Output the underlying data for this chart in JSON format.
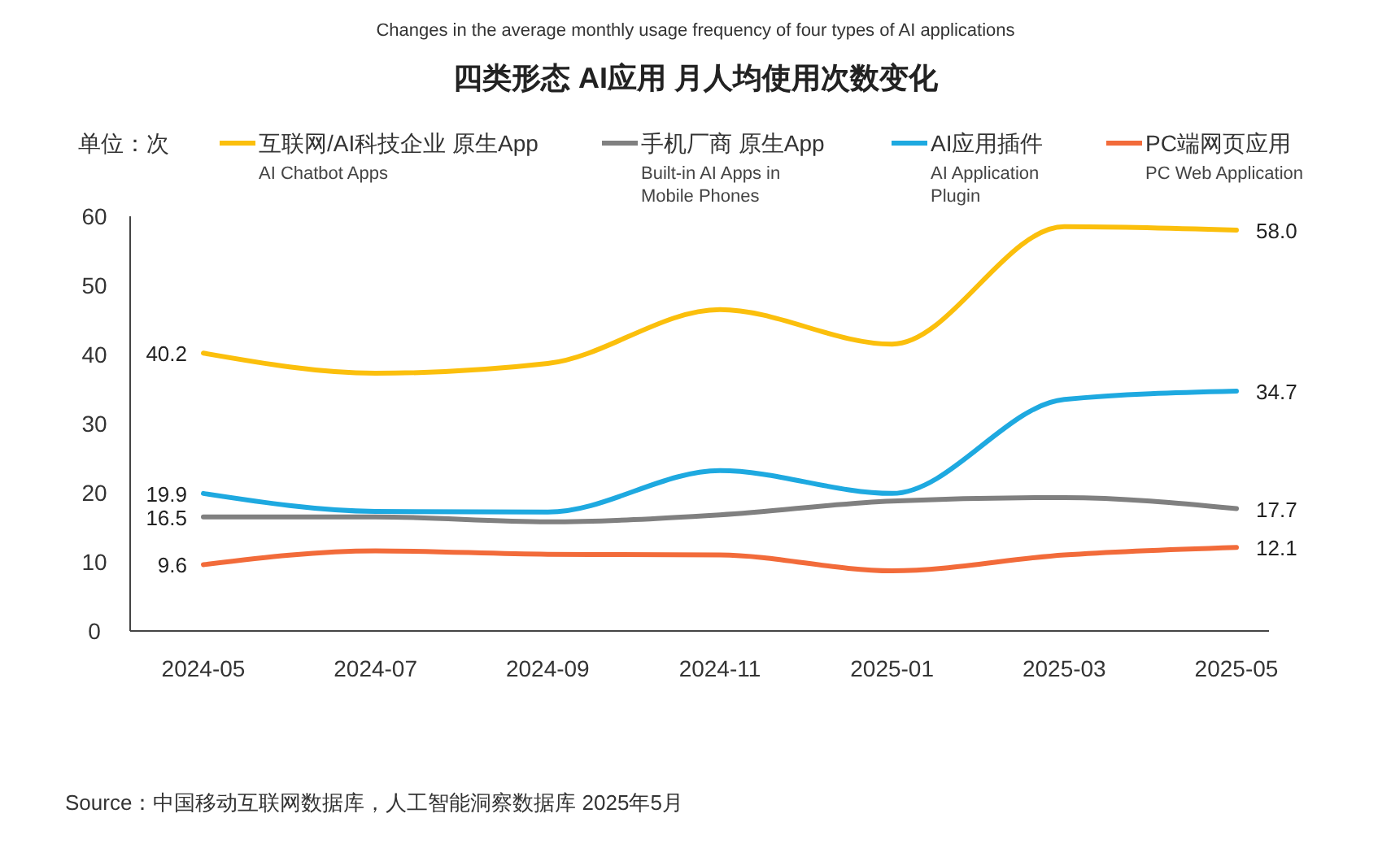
{
  "chart_data": {
    "type": "line",
    "subtitle": "Changes in the average monthly usage frequency of four types of AI applications",
    "title": "四类形态 AI应用 月人均使用次数变化",
    "ylabel": "单位：次",
    "categories": [
      "2024-05",
      "2024-07",
      "2024-09",
      "2024-11",
      "2025-01",
      "2025-03",
      "2025-05"
    ],
    "series": [
      {
        "name": "互联网/AI科技企业 原生App\nAI Chatbot Apps",
        "color": "#fbbf0c",
        "values": [
          40.2,
          37.3,
          38.7,
          46.5,
          41.5,
          58.5,
          58.0
        ],
        "value_labels": [
          "40.2",
          null,
          null,
          null,
          null,
          null,
          "58.0"
        ]
      },
      {
        "name": "手机厂商 原生App\nBuilt-in AI Apps in\nMobile Phones",
        "color": "#808080",
        "values": [
          16.5,
          16.5,
          15.8,
          16.8,
          18.8,
          19.3,
          17.7
        ],
        "value_labels": [
          "16.5",
          null,
          null,
          null,
          null,
          null,
          "17.7"
        ]
      },
      {
        "name": "AI应用插件\nAI Application\nPlugin",
        "color": "#1ea9e0",
        "values": [
          19.9,
          17.3,
          17.2,
          23.2,
          19.9,
          33.5,
          34.7
        ],
        "value_labels": [
          "19.9",
          null,
          null,
          null,
          null,
          null,
          "34.7"
        ]
      },
      {
        "name": "PC端网页应用\nPC Web Application",
        "color": "#f26b3a",
        "values": [
          9.6,
          11.6,
          11.1,
          11.0,
          8.7,
          11.0,
          12.1
        ],
        "value_labels": [
          "9.6",
          null,
          null,
          null,
          null,
          null,
          "12.1"
        ]
      }
    ],
    "ylim": [
      0,
      60
    ],
    "yticks": [
      0,
      10,
      20,
      30,
      40,
      50,
      60
    ],
    "grid": false,
    "legend": "top",
    "line_style": "solid",
    "marker": "none",
    "annotations": [
      "Source：中国移动互联网数据库，人工智能洞察数据库 2025年5月"
    ]
  }
}
